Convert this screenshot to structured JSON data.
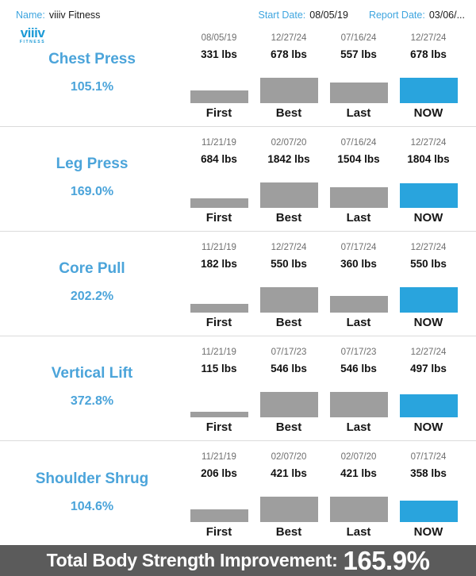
{
  "header": {
    "name_label": "Name:",
    "name_value": "viiiv Fitness",
    "start_date_label": "Start Date:",
    "start_date_value": "08/05/19",
    "report_date_label": "Report Date:",
    "report_date_value": "03/06/..."
  },
  "logo": {
    "brand": "viiiv",
    "sub": "FITNESS"
  },
  "columns": [
    "First",
    "Best",
    "Last",
    "NOW"
  ],
  "exercises": [
    {
      "name": "Chest Press",
      "improvement": "105.1%",
      "bars": [
        {
          "date": "08/05/19",
          "weight": "331 lbs"
        },
        {
          "date": "12/27/24",
          "weight": "678 lbs"
        },
        {
          "date": "07/16/24",
          "weight": "557 lbs"
        },
        {
          "date": "12/27/24",
          "weight": "678 lbs"
        }
      ]
    },
    {
      "name": "Leg Press",
      "improvement": "169.0%",
      "bars": [
        {
          "date": "11/21/19",
          "weight": "684 lbs"
        },
        {
          "date": "02/07/20",
          "weight": "1842 lbs"
        },
        {
          "date": "07/16/24",
          "weight": "1504 lbs"
        },
        {
          "date": "12/27/24",
          "weight": "1804 lbs"
        }
      ]
    },
    {
      "name": "Core Pull",
      "improvement": "202.2%",
      "bars": [
        {
          "date": "11/21/19",
          "weight": "182 lbs"
        },
        {
          "date": "12/27/24",
          "weight": "550 lbs"
        },
        {
          "date": "07/17/24",
          "weight": "360 lbs"
        },
        {
          "date": "12/27/24",
          "weight": "550 lbs"
        }
      ]
    },
    {
      "name": "Vertical Lift",
      "improvement": "372.8%",
      "bars": [
        {
          "date": "11/21/19",
          "weight": "115 lbs"
        },
        {
          "date": "07/17/23",
          "weight": "546 lbs"
        },
        {
          "date": "07/17/23",
          "weight": "546 lbs"
        },
        {
          "date": "12/27/24",
          "weight": "497 lbs"
        }
      ]
    },
    {
      "name": "Shoulder Shrug",
      "improvement": "104.6%",
      "bars": [
        {
          "date": "11/21/19",
          "weight": "206 lbs"
        },
        {
          "date": "02/07/20",
          "weight": "421 lbs"
        },
        {
          "date": "02/07/20",
          "weight": "421 lbs"
        },
        {
          "date": "07/17/24",
          "weight": "358 lbs"
        }
      ]
    }
  ],
  "footer": {
    "label": "Total Body Strength Improvement:",
    "value": "165.9%"
  },
  "colors": {
    "accent_blue": "#29A4DD",
    "label_blue": "#4BA4DA",
    "header_blue": "#3EA5DF",
    "bar_gray": "#9E9E9E",
    "footer_bg": "#5B5B5B"
  },
  "chart_data": [
    {
      "type": "bar",
      "title": "Chest Press",
      "subtitle": "105.1%",
      "categories": [
        "First",
        "Best",
        "Last",
        "NOW"
      ],
      "values": [
        331,
        678,
        557,
        678
      ],
      "dates": [
        "08/05/19",
        "12/27/24",
        "07/16/24",
        "12/27/24"
      ],
      "unit": "lbs",
      "highlight_index": 3,
      "ylim": [
        0,
        678
      ],
      "grid": false,
      "legend": false
    },
    {
      "type": "bar",
      "title": "Leg Press",
      "subtitle": "169.0%",
      "categories": [
        "First",
        "Best",
        "Last",
        "NOW"
      ],
      "values": [
        684,
        1842,
        1504,
        1804
      ],
      "dates": [
        "11/21/19",
        "02/07/20",
        "07/16/24",
        "12/27/24"
      ],
      "unit": "lbs",
      "highlight_index": 3,
      "ylim": [
        0,
        1842
      ],
      "grid": false,
      "legend": false
    },
    {
      "type": "bar",
      "title": "Core Pull",
      "subtitle": "202.2%",
      "categories": [
        "First",
        "Best",
        "Last",
        "NOW"
      ],
      "values": [
        182,
        550,
        360,
        550
      ],
      "dates": [
        "11/21/19",
        "12/27/24",
        "07/17/24",
        "12/27/24"
      ],
      "unit": "lbs",
      "highlight_index": 3,
      "ylim": [
        0,
        550
      ],
      "grid": false,
      "legend": false
    },
    {
      "type": "bar",
      "title": "Vertical Lift",
      "subtitle": "372.8%",
      "categories": [
        "First",
        "Best",
        "Last",
        "NOW"
      ],
      "values": [
        115,
        546,
        546,
        497
      ],
      "dates": [
        "11/21/19",
        "07/17/23",
        "07/17/23",
        "12/27/24"
      ],
      "unit": "lbs",
      "highlight_index": 3,
      "ylim": [
        0,
        546
      ],
      "grid": false,
      "legend": false
    },
    {
      "type": "bar",
      "title": "Shoulder Shrug",
      "subtitle": "104.6%",
      "categories": [
        "First",
        "Best",
        "Last",
        "NOW"
      ],
      "values": [
        206,
        421,
        421,
        358
      ],
      "dates": [
        "11/21/19",
        "02/07/20",
        "02/07/20",
        "07/17/24"
      ],
      "unit": "lbs",
      "highlight_index": 3,
      "ylim": [
        0,
        421
      ],
      "grid": false,
      "legend": false
    }
  ]
}
